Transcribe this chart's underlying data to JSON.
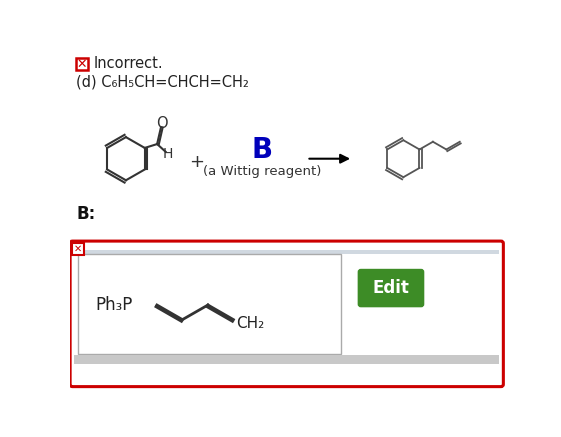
{
  "bg_color": "#ffffff",
  "incorrect_text": "Incorrect.",
  "incorrect_x_color": "#cc0000",
  "title_text": "(d) C₆H₅CH=CHCH=CH₂",
  "wittig_label": "(a Wittig reagent)",
  "B_label": "B",
  "B_color": "#0000bb",
  "b_colon_text": "B:",
  "plus_sign": "+",
  "arrow_color": "#000000",
  "edit_button_color": "#3d8c26",
  "edit_button_text": "Edit",
  "edit_button_text_color": "#ffffff",
  "outer_box_color": "#cc0000",
  "ph3p_text": "Ph₃P",
  "ch2_text": "CH₂",
  "line_color": "#333333",
  "product_line_color": "#555555"
}
